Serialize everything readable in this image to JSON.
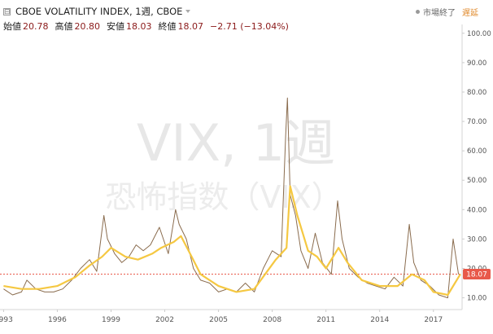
{
  "header": {
    "title": "CBOE VOLATILITY INDEX, 1週, CBOE",
    "open_label": "始値",
    "open": "20.78",
    "high_label": "高値",
    "high": "20.80",
    "low_label": "安値",
    "low": "18.03",
    "close_label": "終値",
    "close": "18.07",
    "change": "−2.71 (−13.04%)",
    "market_status": "市場終了",
    "delay_label": "遅延"
  },
  "watermark": {
    "symbol": "VIX, 1週",
    "name": "恐怖指数（VIX）"
  },
  "chart_data": {
    "type": "line",
    "title": "CBOE VOLATILITY INDEX, 1週, CBOE",
    "xlabel": "",
    "ylabel": "",
    "xlim": [
      1992.8,
      2018.6
    ],
    "ylim": [
      6,
      103
    ],
    "yticks": [
      10,
      20,
      30,
      40,
      50,
      60,
      70,
      80,
      90,
      100
    ],
    "ytick_labels": [
      "10.00",
      "20.00",
      "30.00",
      "40.00",
      "50.00",
      "60.00",
      "70.00",
      "80.00",
      "90.00",
      "100.00"
    ],
    "xticks": [
      1993,
      1996,
      1999,
      2002,
      2005,
      2008,
      2011,
      2014,
      2017
    ],
    "xtick_labels": [
      "1993",
      "1996",
      "1999",
      "2002",
      "2005",
      "2008",
      "2011",
      "2014",
      "2017"
    ],
    "last_value": 18.07,
    "last_value_label": "18.07",
    "last_value_color": "#e8594a",
    "grid": false,
    "series": [
      {
        "color": "#8a6c4e",
        "x": [
          1993.0,
          1993.5,
          1994.0,
          1994.3,
          1994.8,
          1995.3,
          1995.8,
          1996.3,
          1996.8,
          1997.3,
          1997.8,
          1998.2,
          1998.6,
          1998.8,
          1999.2,
          1999.6,
          2000.0,
          2000.4,
          2000.8,
          2001.2,
          2001.7,
          2002.2,
          2002.6,
          2002.8,
          2003.2,
          2003.6,
          2004.0,
          2004.5,
          2005.0,
          2005.5,
          2006.0,
          2006.5,
          2007.0,
          2007.5,
          2008.0,
          2008.5,
          2008.75,
          2008.85,
          2009.0,
          2009.3,
          2009.6,
          2010.0,
          2010.4,
          2010.8,
          2011.3,
          2011.65,
          2011.9,
          2012.3,
          2012.8,
          2013.3,
          2013.8,
          2014.3,
          2014.8,
          2015.3,
          2015.65,
          2015.9,
          2016.3,
          2016.8,
          2017.3,
          2017.8,
          2018.1,
          2018.4
        ],
        "values": [
          13,
          11,
          12,
          16,
          13,
          12,
          12,
          13,
          16,
          20,
          23,
          19,
          38,
          30,
          25,
          22,
          24,
          28,
          26,
          28,
          34,
          25,
          40,
          35,
          30,
          20,
          16,
          15,
          12,
          13,
          12,
          15,
          12,
          20,
          26,
          24,
          65,
          78,
          45,
          38,
          26,
          20,
          32,
          22,
          18,
          43,
          30,
          20,
          17,
          15,
          14,
          13,
          17,
          14,
          35,
          22,
          16,
          14,
          11,
          10,
          30,
          18
        ]
      },
      {
        "color": "#f5c842",
        "x": [
          1993.0,
          1994.0,
          1995.0,
          1996.0,
          1997.0,
          1997.8,
          1998.5,
          1999.0,
          1999.8,
          2000.5,
          2001.3,
          2001.8,
          2002.5,
          2002.9,
          2003.5,
          2004.0,
          2005.0,
          2006.0,
          2007.0,
          2007.6,
          2008.2,
          2008.8,
          2009.0,
          2009.4,
          2010.0,
          2010.5,
          2011.0,
          2011.7,
          2012.2,
          2013.0,
          2014.0,
          2015.0,
          2015.8,
          2016.5,
          2017.0,
          2017.8,
          2018.2,
          2018.5
        ],
        "values": [
          14,
          13,
          13,
          14,
          17,
          21,
          24,
          27,
          24,
          23,
          25,
          27,
          29,
          31,
          24,
          18,
          14,
          12,
          13,
          18,
          23,
          27,
          48,
          38,
          26,
          24,
          20,
          27,
          22,
          16,
          14,
          14,
          18,
          16,
          12,
          11,
          15,
          18
        ]
      }
    ]
  }
}
